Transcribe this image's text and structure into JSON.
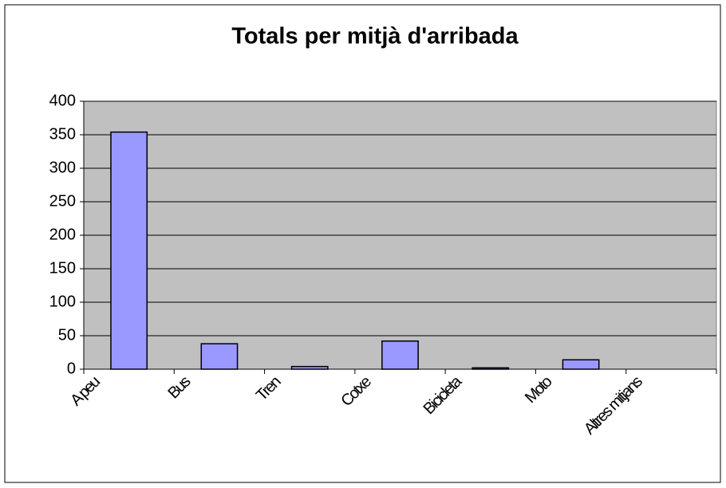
{
  "chart_data": {
    "type": "bar",
    "title": "Totals per mitjà d'arribada",
    "categories": [
      "A peu",
      "Bus",
      "Tren",
      "Cotxe",
      "Bicicleta",
      "Moto",
      "Altres mitjans"
    ],
    "values": [
      354,
      38,
      4,
      42,
      2,
      14,
      0
    ],
    "color": "#9999ff",
    "ylim": [
      0,
      400
    ],
    "yticks": [
      0,
      50,
      100,
      150,
      200,
      250,
      300,
      350,
      400
    ],
    "grid": true
  }
}
